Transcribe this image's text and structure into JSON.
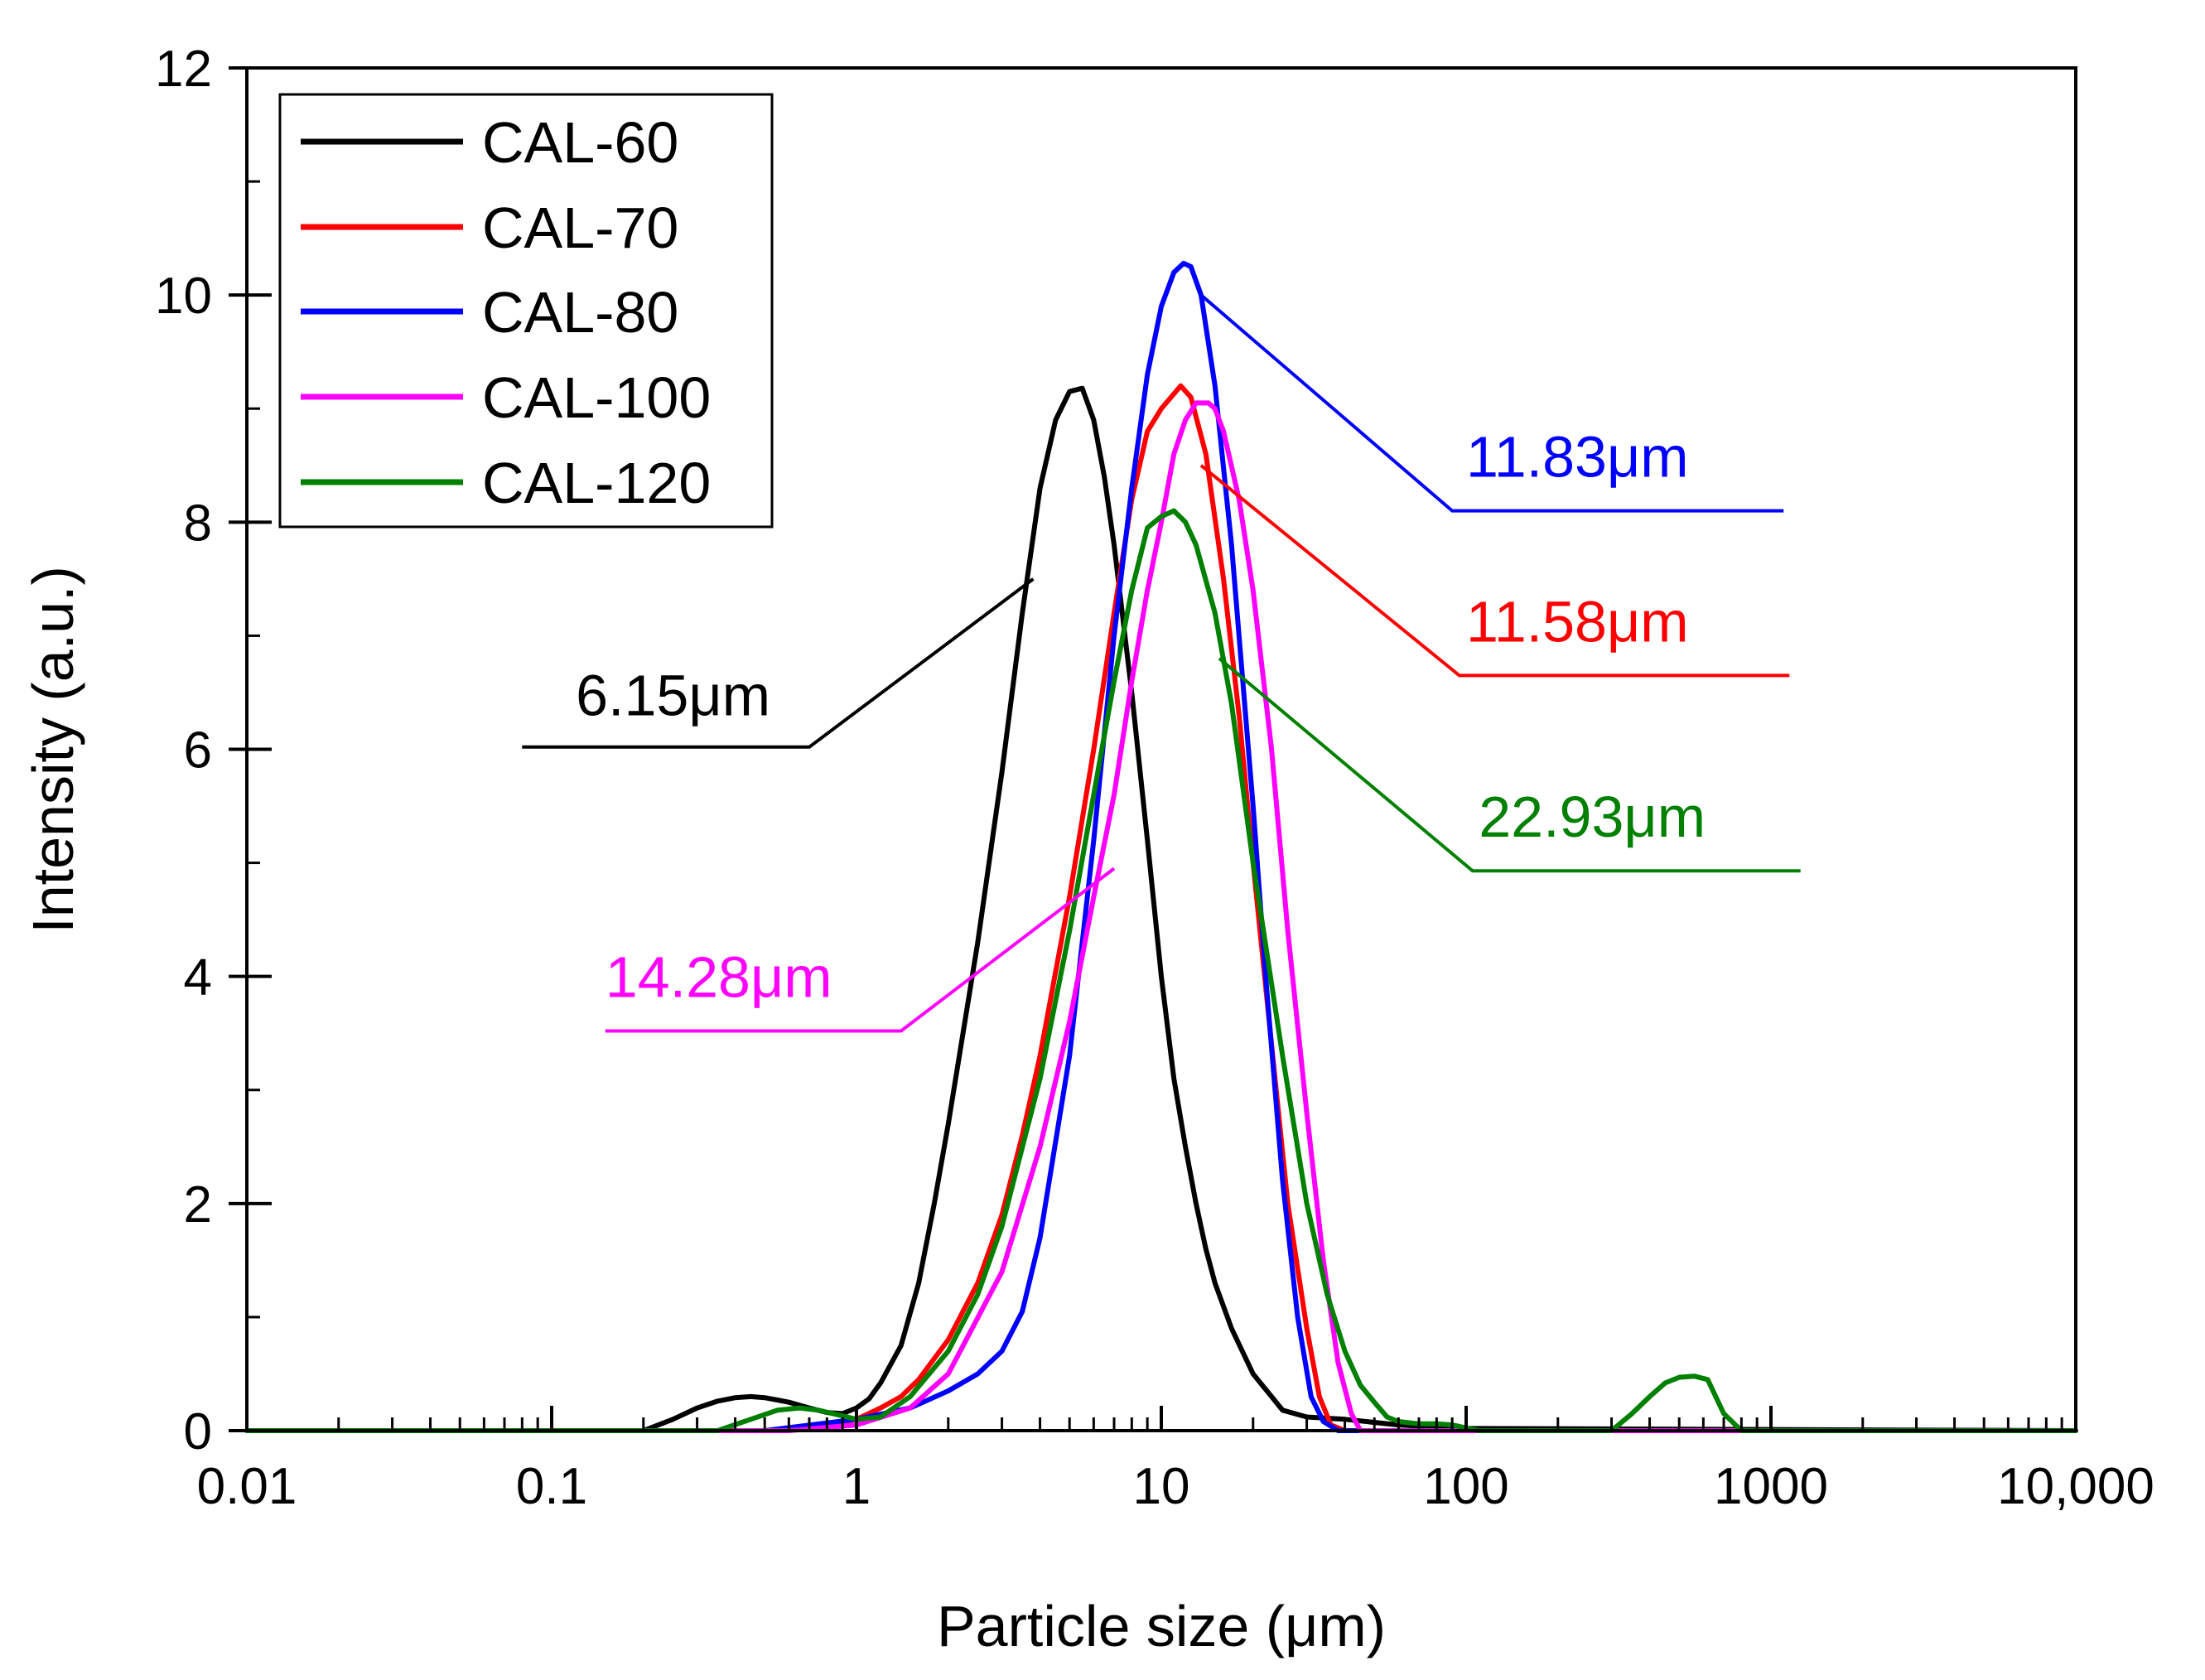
{
  "chart_data": {
    "type": "line",
    "x_scale": "log",
    "xlabel": "Particle size  (μm)",
    "ylabel": "Intensity (a.u.)",
    "xlim": [
      0.01,
      10000
    ],
    "ylim": [
      0,
      12
    ],
    "x_tick_values": [
      0.01,
      0.1,
      1,
      10,
      100,
      1000,
      10000
    ],
    "x_tick_labels": [
      "0.01",
      "0.1",
      "1",
      "10",
      "100",
      "1000",
      "10,000"
    ],
    "y_tick_values": [
      0,
      2,
      4,
      6,
      8,
      10,
      12
    ],
    "y_tick_labels": [
      "0",
      "2",
      "4",
      "6",
      "8",
      "10",
      "12"
    ],
    "legend_position": "top-left",
    "series": [
      {
        "name": "CAL-60",
        "color": "#000000",
        "x": [
          0.01,
          0.2,
          0.25,
          0.3,
          0.35,
          0.4,
          0.45,
          0.5,
          0.55,
          0.6,
          0.7,
          0.8,
          0.9,
          1.0,
          1.1,
          1.2,
          1.4,
          1.6,
          1.8,
          2.0,
          2.5,
          3.0,
          3.5,
          4.0,
          4.5,
          5.0,
          5.5,
          6.0,
          6.5,
          7.0,
          8.0,
          9.0,
          10.0,
          11.0,
          12.0,
          13.0,
          14.0,
          15.0,
          17.0,
          20.0,
          23.0,
          25.0,
          30.0,
          40.0,
          60.0,
          100.0,
          10000.0
        ],
        "y": [
          0,
          0,
          0.1,
          0.2,
          0.26,
          0.29,
          0.3,
          0.29,
          0.27,
          0.25,
          0.2,
          0.16,
          0.15,
          0.2,
          0.28,
          0.42,
          0.75,
          1.3,
          2.0,
          2.7,
          4.3,
          5.8,
          7.2,
          8.3,
          8.9,
          9.15,
          9.18,
          8.9,
          8.4,
          7.8,
          6.5,
          5.2,
          4.0,
          3.1,
          2.5,
          2.0,
          1.6,
          1.3,
          0.9,
          0.5,
          0.3,
          0.18,
          0.12,
          0.1,
          0.05,
          0.02,
          0
        ]
      },
      {
        "name": "CAL-70",
        "color": "#ff0000",
        "x": [
          0.01,
          0.5,
          0.8,
          1.0,
          1.2,
          1.4,
          1.6,
          2.0,
          2.5,
          3.0,
          3.5,
          4.0,
          5.0,
          6.0,
          7.0,
          8.0,
          9.0,
          10.0,
          11.58,
          12.5,
          14.0,
          16.0,
          18.0,
          20.0,
          23.0,
          26.0,
          30.0,
          33.0,
          36.0,
          40.0,
          10000.0
        ],
        "y": [
          0,
          0,
          0.05,
          0.1,
          0.2,
          0.3,
          0.45,
          0.8,
          1.3,
          1.9,
          2.6,
          3.3,
          4.7,
          6.0,
          7.2,
          8.2,
          8.8,
          9.0,
          9.2,
          9.1,
          8.6,
          7.5,
          6.3,
          5.0,
          3.4,
          2.0,
          0.9,
          0.3,
          0.05,
          0,
          0
        ]
      },
      {
        "name": "CAL-80",
        "color": "#0000ff",
        "x": [
          0.01,
          0.5,
          1.0,
          1.5,
          2.0,
          2.5,
          3.0,
          3.5,
          4.0,
          5.0,
          6.0,
          7.0,
          8.0,
          9.0,
          10.0,
          11.0,
          11.83,
          12.5,
          13.5,
          15.0,
          17.0,
          20.0,
          22.0,
          25.0,
          28.0,
          31.0,
          34.0,
          38.0,
          10000.0
        ],
        "y": [
          0,
          0,
          0.1,
          0.2,
          0.35,
          0.5,
          0.7,
          1.05,
          1.7,
          3.3,
          5.2,
          7.0,
          8.3,
          9.3,
          9.9,
          10.2,
          10.28,
          10.25,
          10.0,
          9.2,
          7.8,
          5.5,
          4.0,
          2.2,
          1.0,
          0.3,
          0.08,
          0,
          0
        ]
      },
      {
        "name": "CAL-100",
        "color": "#ff00ff",
        "x": [
          0.01,
          0.6,
          1.0,
          1.5,
          2.0,
          3.0,
          4.0,
          5.0,
          6.0,
          7.0,
          8.0,
          9.0,
          10.0,
          11.0,
          12.0,
          13.0,
          14.28,
          15.0,
          16.0,
          18.0,
          20.0,
          23.0,
          26.0,
          30.0,
          34.0,
          38.0,
          42.0,
          45.0,
          10000.0
        ],
        "y": [
          0,
          0,
          0.05,
          0.2,
          0.5,
          1.4,
          2.5,
          3.6,
          4.7,
          5.6,
          6.6,
          7.4,
          8.0,
          8.6,
          8.9,
          9.05,
          9.05,
          9.0,
          8.8,
          8.2,
          7.4,
          6.0,
          4.4,
          2.8,
          1.5,
          0.6,
          0.15,
          0,
          0
        ]
      },
      {
        "name": "CAL-120",
        "color": "#008000",
        "x": [
          0.01,
          0.35,
          0.45,
          0.55,
          0.65,
          0.75,
          0.9,
          1.0,
          1.2,
          1.5,
          2.0,
          2.5,
          3.0,
          4.0,
          5.0,
          6.0,
          7.0,
          8.0,
          9.0,
          10.0,
          11.0,
          12.0,
          13.0,
          15.0,
          17.0,
          20.0,
          25.0,
          30.0,
          35.0,
          40.0,
          45.0,
          50.0,
          55.0,
          60.0,
          70.0,
          80.0,
          90.0,
          110.0,
          300.0,
          350.0,
          400.0,
          450.0,
          500.0,
          560.0,
          620.0,
          700.0,
          800.0,
          10000.0
        ],
        "y": [
          0,
          0,
          0.1,
          0.18,
          0.2,
          0.18,
          0.13,
          0.1,
          0.12,
          0.3,
          0.7,
          1.2,
          1.8,
          3.1,
          4.4,
          5.6,
          6.6,
          7.4,
          7.95,
          8.05,
          8.1,
          8.0,
          7.8,
          7.2,
          6.4,
          5.0,
          3.3,
          2.0,
          1.2,
          0.7,
          0.4,
          0.25,
          0.12,
          0.08,
          0.06,
          0.06,
          0.05,
          0,
          0,
          0.15,
          0.3,
          0.42,
          0.47,
          0.48,
          0.45,
          0.15,
          0,
          0
        ]
      }
    ],
    "annotations": [
      {
        "text": "6.15μm",
        "color": "#000000",
        "leader": [
          [
            0.08,
            6.02
          ],
          [
            0.7,
            6.02
          ],
          [
            3.8,
            7.5
          ]
        ],
        "label_at": [
          0.12,
          6.3
        ]
      },
      {
        "text": "14.28μm",
        "color": "#ff00ff",
        "leader": [
          [
            0.15,
            3.52
          ],
          [
            1.4,
            3.52
          ],
          [
            7.0,
            4.95
          ]
        ],
        "label_at": [
          0.15,
          3.82
        ]
      },
      {
        "text": "11.83μm",
        "color": "#0000ff",
        "leader": [
          [
            13.5,
            10.0
          ],
          [
            90,
            8.1
          ],
          [
            1100,
            8.1
          ]
        ],
        "label_at": [
          100,
          8.4
        ]
      },
      {
        "text": "11.58μm",
        "color": "#ff0000",
        "leader": [
          [
            13.5,
            8.5
          ],
          [
            95,
            6.65
          ],
          [
            1150,
            6.65
          ]
        ],
        "label_at": [
          100,
          6.95
        ]
      },
      {
        "text": "22.93μm",
        "color": "#008000",
        "leader": [
          [
            15.5,
            6.8
          ],
          [
            105,
            4.93
          ],
          [
            1250,
            4.93
          ]
        ],
        "label_at": [
          110,
          5.23
        ]
      }
    ]
  }
}
